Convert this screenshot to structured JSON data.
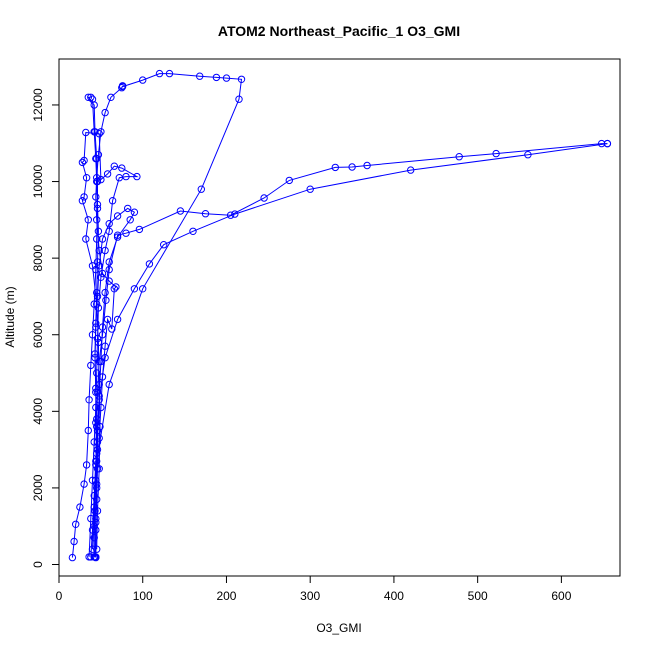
{
  "chart_data": {
    "type": "line",
    "title": "ATOM2 Northeast_Pacific_1 O3_GMI",
    "xlabel": "O3_GMI",
    "ylabel": "Altitude (m)",
    "xlim": [
      0,
      670
    ],
    "ylim": [
      -300,
      13200
    ],
    "x_ticks": [
      0,
      100,
      200,
      300,
      400,
      500,
      600
    ],
    "y_ticks": [
      0,
      2000,
      4000,
      6000,
      8000,
      10000,
      12000
    ],
    "y_tick_labels_rotated": true,
    "grid": false,
    "legend": false,
    "series_color": "#0000ff",
    "marker": "open-circle",
    "series": [
      {
        "values": [
          [
            16,
            180
          ],
          [
            18,
            600
          ],
          [
            20,
            1050
          ],
          [
            25,
            1500
          ],
          [
            30,
            2100
          ],
          [
            33,
            2600
          ],
          [
            35,
            3500
          ],
          [
            36,
            4300
          ],
          [
            38,
            5200
          ],
          [
            40,
            6000
          ],
          [
            42,
            6800
          ],
          [
            44,
            7700
          ],
          [
            45,
            8500
          ],
          [
            46,
            9300
          ],
          [
            46,
            10000
          ],
          [
            45,
            10600
          ],
          [
            43,
            11300
          ],
          [
            42,
            12000
          ],
          [
            35,
            12200
          ],
          [
            38,
            12200
          ]
        ]
      },
      {
        "values": [
          [
            40,
            12150
          ],
          [
            42,
            11300
          ],
          [
            44,
            10600
          ],
          [
            45,
            10000
          ],
          [
            46,
            9400
          ],
          [
            47,
            8700
          ],
          [
            46,
            7900
          ],
          [
            45,
            7100
          ],
          [
            44,
            6300
          ],
          [
            43,
            5500
          ],
          [
            44,
            4600
          ],
          [
            45,
            3800
          ],
          [
            46,
            3000
          ],
          [
            44,
            2200
          ],
          [
            43,
            1400
          ],
          [
            42,
            700
          ],
          [
            42,
            200
          ]
        ]
      },
      {
        "values": [
          [
            43,
            200
          ],
          [
            44,
            900
          ],
          [
            45,
            1700
          ],
          [
            46,
            2500
          ],
          [
            48,
            3300
          ],
          [
            50,
            4100
          ],
          [
            52,
            4900
          ],
          [
            55,
            5700
          ],
          [
            58,
            6400
          ],
          [
            63,
            6150
          ],
          [
            66,
            7200
          ],
          [
            68,
            7250
          ],
          [
            60,
            7400
          ],
          [
            52,
            7600
          ],
          [
            48,
            8200
          ],
          [
            45,
            9000
          ],
          [
            44,
            9600
          ],
          [
            45,
            10100
          ],
          [
            47,
            10700
          ],
          [
            50,
            11300
          ],
          [
            55,
            11800
          ],
          [
            62,
            12200
          ],
          [
            75,
            12450
          ],
          [
            76,
            12500
          ]
        ]
      },
      {
        "values": [
          [
            76,
            12480
          ],
          [
            100,
            12650
          ],
          [
            120,
            12820
          ],
          [
            132,
            12820
          ],
          [
            168,
            12750
          ],
          [
            188,
            12720
          ],
          [
            200,
            12700
          ],
          [
            218,
            12670
          ],
          [
            215,
            12150
          ],
          [
            170,
            9800
          ],
          [
            100,
            7200
          ],
          [
            60,
            4700
          ],
          [
            45,
            2700
          ],
          [
            42,
            1000
          ],
          [
            42,
            200
          ]
        ]
      },
      {
        "values": [
          [
            38,
            200
          ],
          [
            40,
            900
          ],
          [
            42,
            1800
          ],
          [
            44,
            2700
          ],
          [
            45,
            3600
          ],
          [
            46,
            4500
          ],
          [
            48,
            5300
          ],
          [
            52,
            6000
          ],
          [
            56,
            6900
          ],
          [
            60,
            7700
          ],
          [
            70,
            8600
          ],
          [
            80,
            8650
          ],
          [
            96,
            8750
          ],
          [
            145,
            9230
          ],
          [
            175,
            9160
          ],
          [
            205,
            9120
          ],
          [
            245,
            9570
          ],
          [
            275,
            10030
          ],
          [
            330,
            10370
          ],
          [
            350,
            10380
          ],
          [
            368,
            10420
          ],
          [
            478,
            10650
          ],
          [
            522,
            10730
          ],
          [
            648,
            10990
          ],
          [
            655,
            10990
          ]
        ]
      },
      {
        "values": [
          [
            655,
            10990
          ],
          [
            560,
            10700
          ],
          [
            420,
            10300
          ],
          [
            300,
            9800
          ],
          [
            210,
            9150
          ],
          [
            160,
            8700
          ],
          [
            125,
            8350
          ],
          [
            108,
            7850
          ],
          [
            90,
            7200
          ],
          [
            70,
            6400
          ],
          [
            55,
            5400
          ],
          [
            48,
            4300
          ],
          [
            46,
            3200
          ],
          [
            45,
            2100
          ],
          [
            44,
            1100
          ],
          [
            44,
            200
          ]
        ]
      },
      {
        "values": [
          [
            36,
            200
          ],
          [
            38,
            1200
          ],
          [
            40,
            2200
          ],
          [
            42,
            3200
          ],
          [
            44,
            4100
          ],
          [
            45,
            5000
          ],
          [
            46,
            5900
          ],
          [
            47,
            6700
          ],
          [
            50,
            7500
          ],
          [
            55,
            8200
          ],
          [
            60,
            8700
          ],
          [
            64,
            9500
          ],
          [
            72,
            10100
          ],
          [
            80,
            10130
          ],
          [
            93,
            10130
          ],
          [
            75,
            10350
          ],
          [
            66,
            10400
          ],
          [
            58,
            10200
          ],
          [
            50,
            10050
          ],
          [
            48,
            11250
          ],
          [
            32,
            11280
          ],
          [
            30,
            10550
          ],
          [
            28,
            10500
          ],
          [
            33,
            10100
          ],
          [
            30,
            9600
          ],
          [
            28,
            9500
          ],
          [
            35,
            9000
          ],
          [
            32,
            8500
          ],
          [
            40,
            7800
          ],
          [
            45,
            6800
          ],
          [
            47,
            5800
          ],
          [
            48,
            4700
          ],
          [
            49,
            3600
          ],
          [
            48,
            2500
          ],
          [
            46,
            1400
          ],
          [
            45,
            400
          ]
        ]
      },
      {
        "values": [
          [
            40,
            400
          ],
          [
            42,
            1500
          ],
          [
            44,
            2600
          ],
          [
            46,
            3500
          ],
          [
            48,
            4400
          ],
          [
            50,
            5300
          ],
          [
            52,
            6200
          ],
          [
            55,
            7100
          ],
          [
            60,
            7900
          ],
          [
            70,
            8550
          ],
          [
            85,
            9000
          ],
          [
            90,
            9200
          ],
          [
            82,
            9300
          ],
          [
            70,
            9100
          ],
          [
            60,
            8900
          ],
          [
            52,
            8500
          ],
          [
            48,
            7800
          ],
          [
            46,
            7000
          ],
          [
            44,
            6200
          ],
          [
            43,
            5400
          ],
          [
            44,
            4500
          ],
          [
            44,
            3700
          ],
          [
            45,
            2900
          ],
          [
            45,
            2000
          ],
          [
            44,
            1200
          ],
          [
            44,
            180
          ]
        ]
      }
    ]
  }
}
